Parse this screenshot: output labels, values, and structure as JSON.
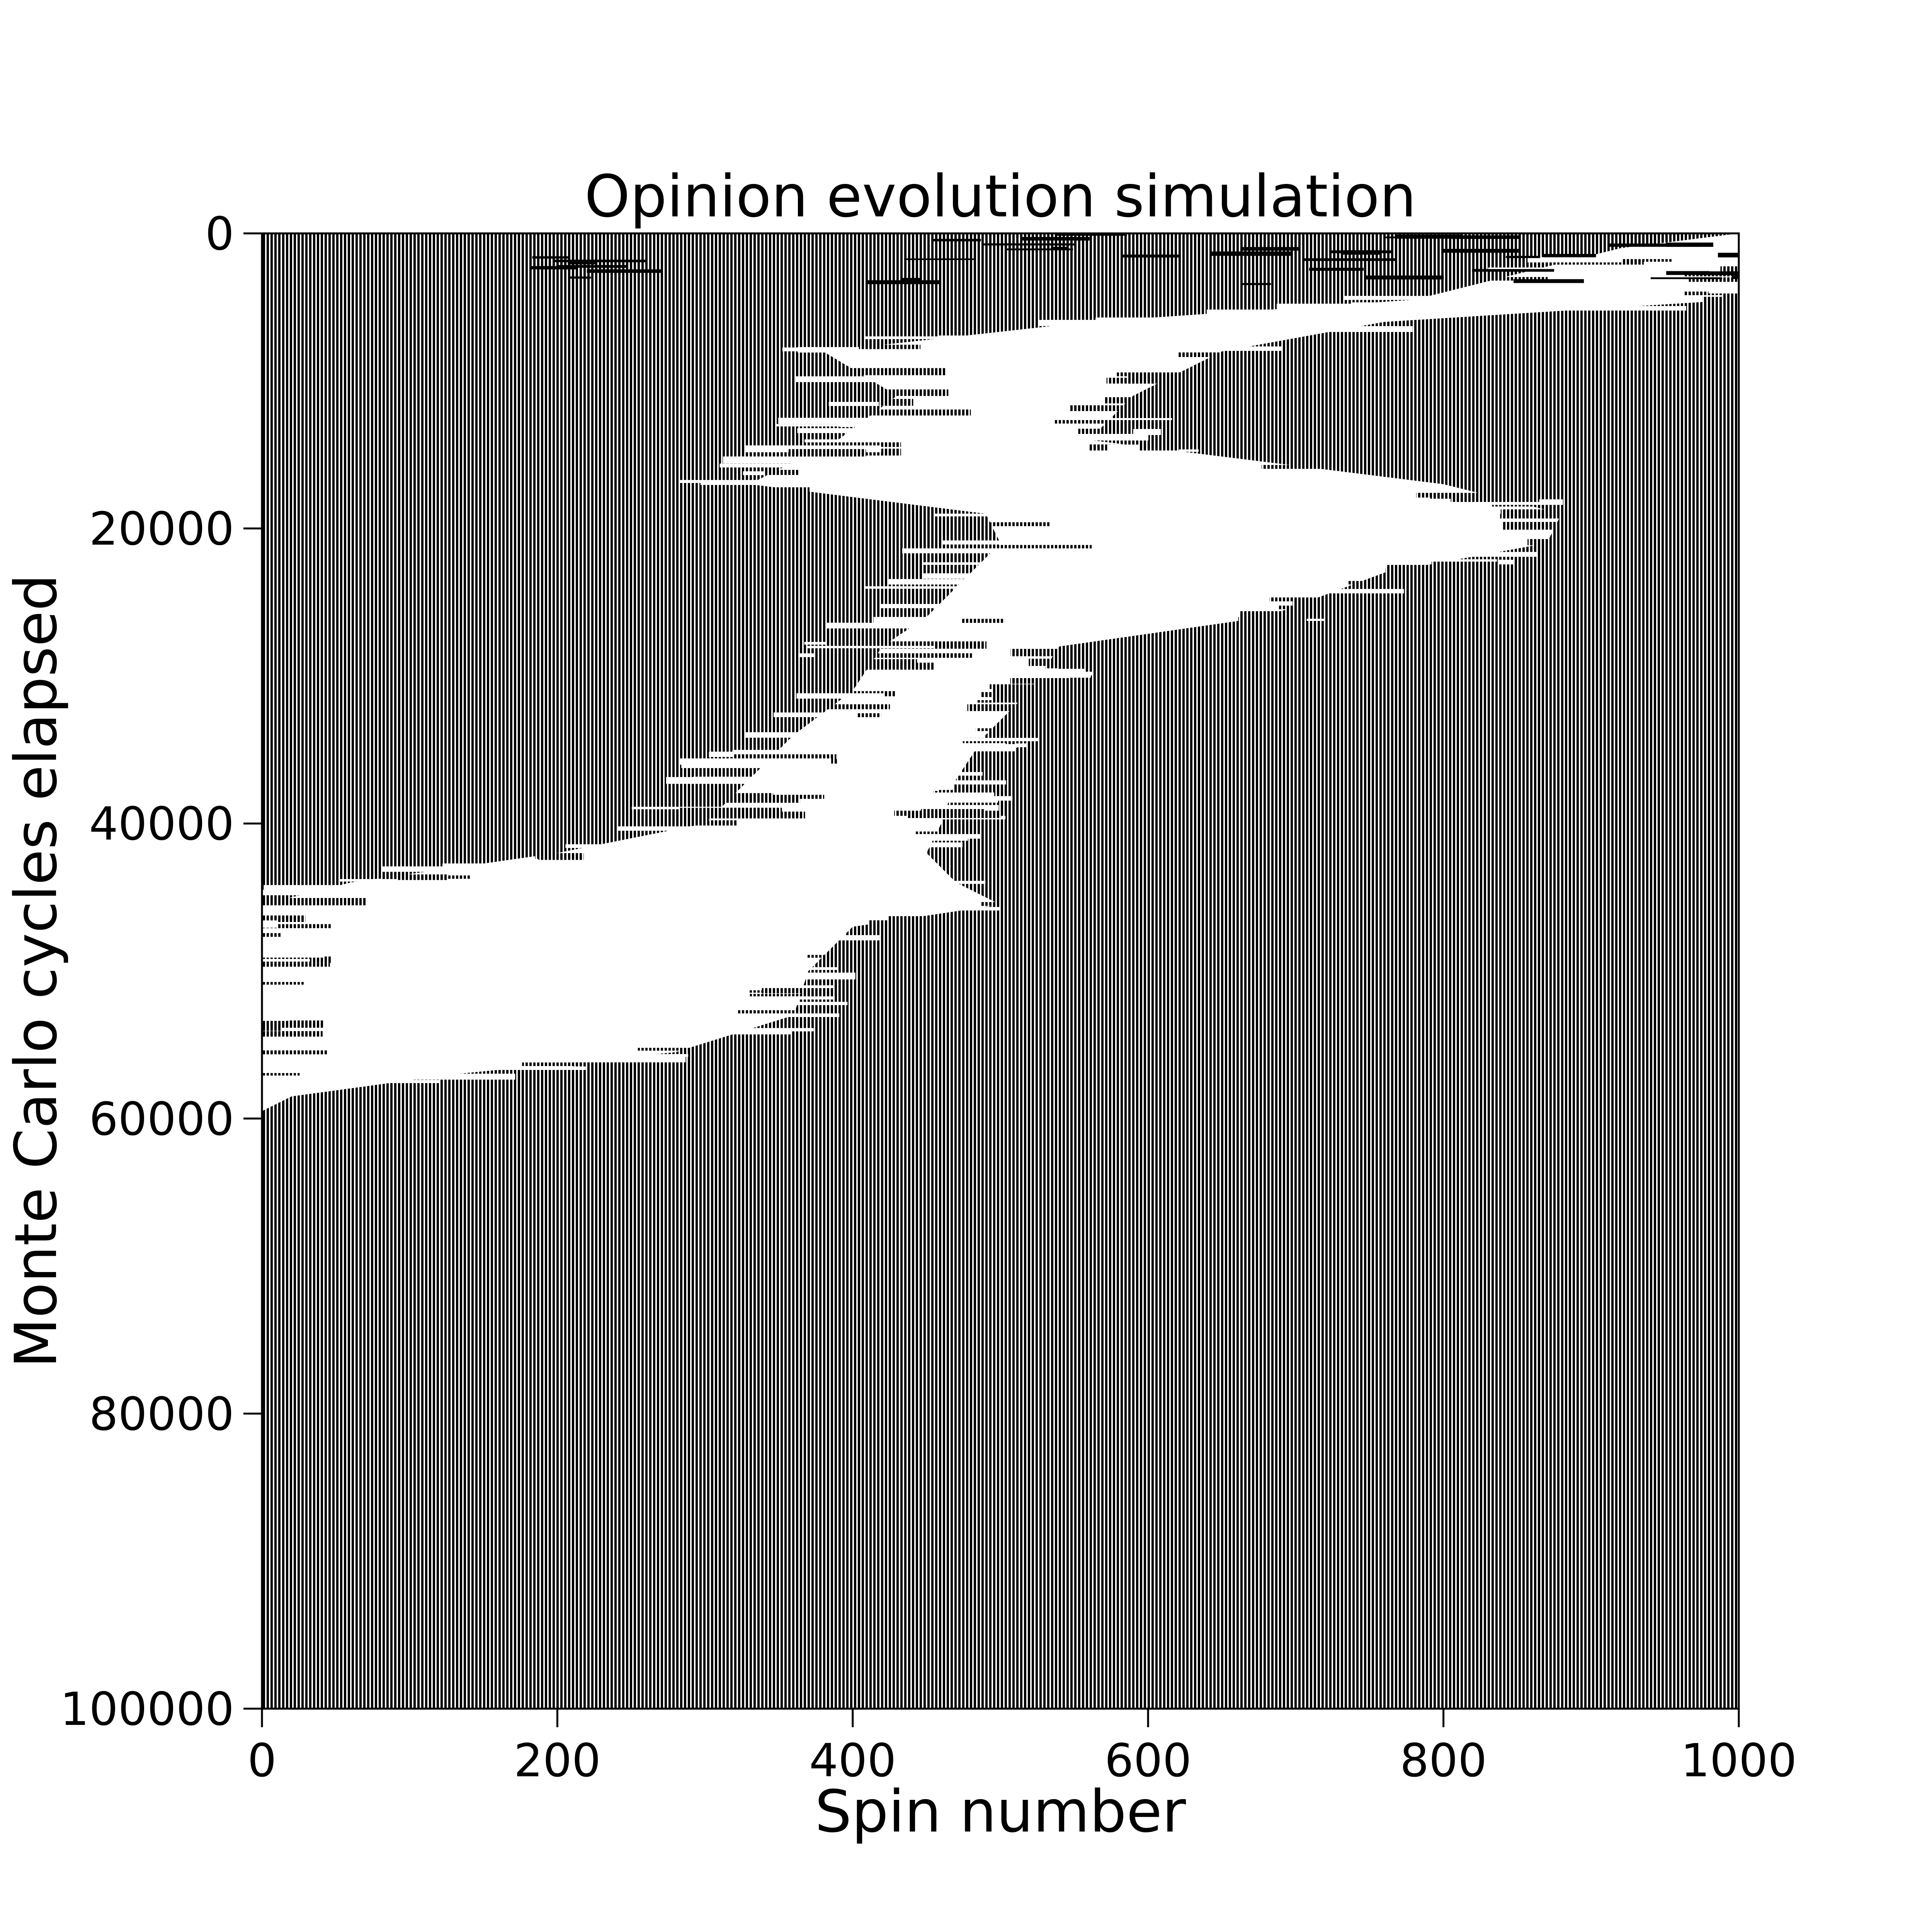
{
  "chart_data": {
    "type": "heatmap",
    "title": "Opinion evolution simulation",
    "xlabel": "Spin number",
    "ylabel": "Monte Carlo cycles elapsed",
    "xlim": [
      0,
      1000
    ],
    "ylim": [
      0,
      100000
    ],
    "y_inverted": true,
    "colors": {
      "spin_up": "#000000",
      "spin_down": "#ffffff"
    },
    "x_ticks": [
      0,
      200,
      400,
      600,
      800,
      1000
    ],
    "x_tick_labels": [
      "0",
      "200",
      "400",
      "600",
      "800",
      "1000"
    ],
    "y_ticks": [
      0,
      20000,
      40000,
      60000,
      80000,
      100000
    ],
    "y_tick_labels": [
      "0",
      "20000",
      "40000",
      "60000",
      "80000",
      "100000"
    ],
    "white_domain": [
      {
        "y": 0,
        "x0": 1000,
        "x1": 1000
      },
      {
        "y": 1000,
        "x0": 920,
        "x1": 1000
      },
      {
        "y": 2500,
        "x0": 860,
        "x1": 1000
      },
      {
        "y": 4500,
        "x0": 780,
        "x1": 1000
      },
      {
        "y": 6000,
        "x0": 560,
        "x1": 760
      },
      {
        "y": 8000,
        "x0": 380,
        "x1": 650
      },
      {
        "y": 11000,
        "x0": 430,
        "x1": 590
      },
      {
        "y": 14000,
        "x0": 390,
        "x1": 560
      },
      {
        "y": 17000,
        "x0": 330,
        "x1": 800
      },
      {
        "y": 19000,
        "x0": 490,
        "x1": 880
      },
      {
        "y": 21000,
        "x0": 500,
        "x1": 870
      },
      {
        "y": 23000,
        "x0": 480,
        "x1": 760
      },
      {
        "y": 26000,
        "x0": 450,
        "x1": 680
      },
      {
        "y": 28000,
        "x0": 420,
        "x1": 540
      },
      {
        "y": 31000,
        "x0": 400,
        "x1": 520
      },
      {
        "y": 34000,
        "x0": 360,
        "x1": 490
      },
      {
        "y": 37000,
        "x0": 330,
        "x1": 470
      },
      {
        "y": 40000,
        "x0": 300,
        "x1": 460
      },
      {
        "y": 42000,
        "x0": 200,
        "x1": 450
      },
      {
        "y": 44000,
        "x0": 60,
        "x1": 470
      },
      {
        "y": 45500,
        "x0": 0,
        "x1": 500
      },
      {
        "y": 47000,
        "x0": 0,
        "x1": 400
      },
      {
        "y": 50000,
        "x0": 0,
        "x1": 370
      },
      {
        "y": 53000,
        "x0": 0,
        "x1": 360
      },
      {
        "y": 55500,
        "x0": 0,
        "x1": 280
      },
      {
        "y": 57000,
        "x0": 0,
        "x1": 130
      },
      {
        "y": 58500,
        "x0": 0,
        "x1": 20
      },
      {
        "y": 59500,
        "x0": 0,
        "x1": 0
      }
    ]
  }
}
